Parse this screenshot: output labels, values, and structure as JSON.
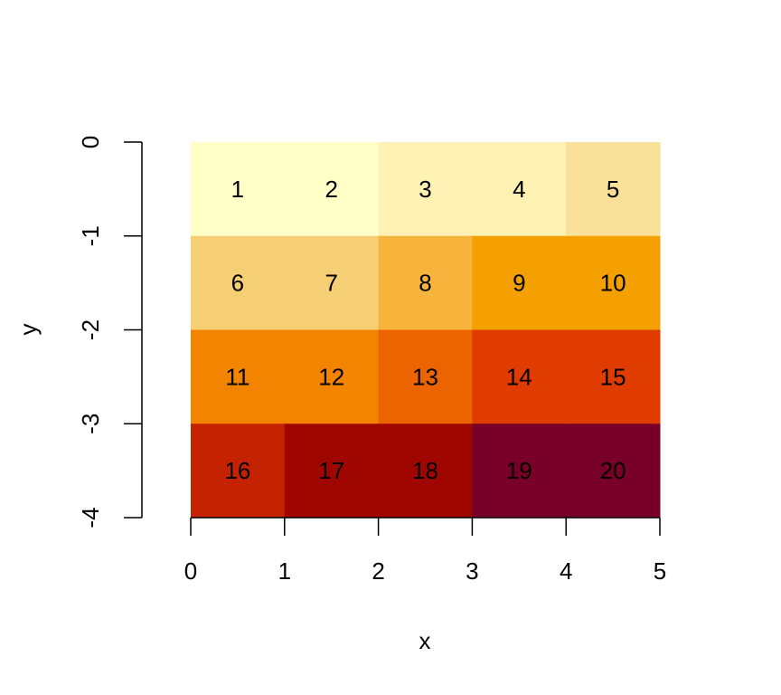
{
  "chart_data": {
    "type": "heatmap",
    "title": "",
    "xlabel": "x",
    "ylabel": "y",
    "xlim": [
      0,
      5
    ],
    "ylim": [
      -4,
      0
    ],
    "x_ticks": [
      "0",
      "1",
      "2",
      "3",
      "4",
      "5"
    ],
    "y_ticks": [
      "0",
      "-1",
      "-2",
      "-3",
      "-4"
    ],
    "grid": false,
    "legend": "none",
    "cells": [
      {
        "x": [
          0,
          1
        ],
        "y": [
          -1,
          0
        ],
        "label": "1",
        "color": "#FFFFC8"
      },
      {
        "x": [
          1,
          2
        ],
        "y": [
          -1,
          0
        ],
        "label": "2",
        "color": "#FFFFC8"
      },
      {
        "x": [
          2,
          3
        ],
        "y": [
          -1,
          0
        ],
        "label": "3",
        "color": "#FDF2B4"
      },
      {
        "x": [
          3,
          4
        ],
        "y": [
          -1,
          0
        ],
        "label": "4",
        "color": "#FDF2B4"
      },
      {
        "x": [
          4,
          5
        ],
        "y": [
          -1,
          0
        ],
        "label": "5",
        "color": "#F9E098"
      },
      {
        "x": [
          0,
          1
        ],
        "y": [
          -2,
          -1
        ],
        "label": "6",
        "color": "#F6CE74"
      },
      {
        "x": [
          1,
          2
        ],
        "y": [
          -2,
          -1
        ],
        "label": "7",
        "color": "#F6CE74"
      },
      {
        "x": [
          2,
          3
        ],
        "y": [
          -2,
          -1
        ],
        "label": "8",
        "color": "#F6B43C"
      },
      {
        "x": [
          3,
          4
        ],
        "y": [
          -2,
          -1
        ],
        "label": "9",
        "color": "#F4A000"
      },
      {
        "x": [
          4,
          5
        ],
        "y": [
          -2,
          -1
        ],
        "label": "10",
        "color": "#F4A000"
      },
      {
        "x": [
          0,
          1
        ],
        "y": [
          -3,
          -2
        ],
        "label": "11",
        "color": "#F28400"
      },
      {
        "x": [
          1,
          2
        ],
        "y": [
          -3,
          -2
        ],
        "label": "12",
        "color": "#F28400"
      },
      {
        "x": [
          2,
          3
        ],
        "y": [
          -3,
          -2
        ],
        "label": "13",
        "color": "#EC6400"
      },
      {
        "x": [
          3,
          4
        ],
        "y": [
          -3,
          -2
        ],
        "label": "14",
        "color": "#E03C00"
      },
      {
        "x": [
          4,
          5
        ],
        "y": [
          -3,
          -2
        ],
        "label": "15",
        "color": "#E03C00"
      },
      {
        "x": [
          0,
          1
        ],
        "y": [
          -4,
          -3
        ],
        "label": "16",
        "color": "#C42200"
      },
      {
        "x": [
          1,
          2
        ],
        "y": [
          -4,
          -3
        ],
        "label": "17",
        "color": "#A00600"
      },
      {
        "x": [
          2,
          3
        ],
        "y": [
          -4,
          -3
        ],
        "label": "18",
        "color": "#A00600"
      },
      {
        "x": [
          3,
          4
        ],
        "y": [
          -4,
          -3
        ],
        "label": "19",
        "color": "#780028"
      },
      {
        "x": [
          4,
          5
        ],
        "y": [
          -4,
          -3
        ],
        "label": "20",
        "color": "#780028"
      }
    ]
  }
}
